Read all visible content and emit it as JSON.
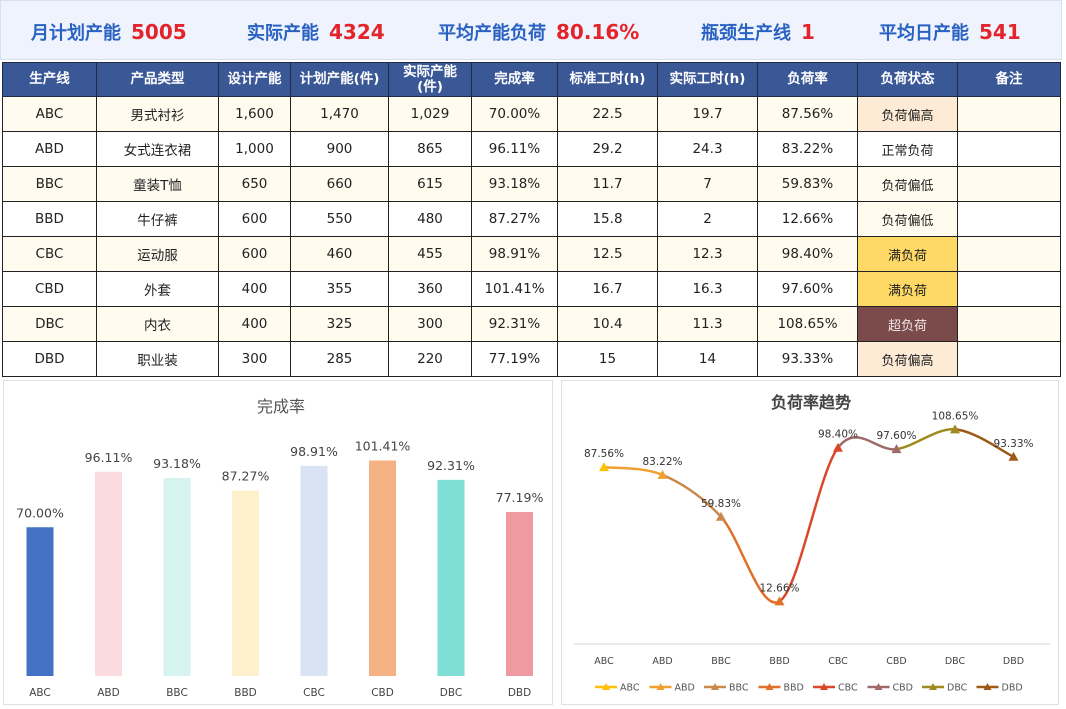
{
  "kpis": [
    {
      "label": "月计划产能",
      "value": "5005"
    },
    {
      "label": "实际产能",
      "value": "4324"
    },
    {
      "label": "平均产能负荷",
      "value": "80.16%"
    },
    {
      "label": "瓶颈生产线",
      "value": "1"
    },
    {
      "label": "平均日产能",
      "value": "541"
    }
  ],
  "table": {
    "headers": [
      "生产线",
      "产品类型",
      "设计产能",
      "计划产能(件)",
      "实际产能\n(件)",
      "完成率",
      "标准工时(h)",
      "实际工时(h)",
      "负荷率",
      "负荷状态",
      "备注"
    ],
    "rows": [
      [
        "ABC",
        "男式衬衫",
        "1,600",
        "1,470",
        "1,029",
        "70.00%",
        "22.5",
        "19.7",
        "87.56%",
        "负荷偏高",
        ""
      ],
      [
        "ABD",
        "女式连衣裙",
        "1,000",
        "900",
        "865",
        "96.11%",
        "29.2",
        "24.3",
        "83.22%",
        "正常负荷",
        ""
      ],
      [
        "BBC",
        "童装T恤",
        "650",
        "660",
        "615",
        "93.18%",
        "11.7",
        "7",
        "59.83%",
        "负荷偏低",
        ""
      ],
      [
        "BBD",
        "牛仔裤",
        "600",
        "550",
        "480",
        "87.27%",
        "15.8",
        "2",
        "12.66%",
        "负荷偏低",
        ""
      ],
      [
        "CBC",
        "运动服",
        "600",
        "460",
        "455",
        "98.91%",
        "12.5",
        "12.3",
        "98.40%",
        "满负荷",
        ""
      ],
      [
        "CBD",
        "外套",
        "400",
        "355",
        "360",
        "101.41%",
        "16.7",
        "16.3",
        "97.60%",
        "满负荷",
        ""
      ],
      [
        "DBC",
        "内衣",
        "400",
        "325",
        "300",
        "92.31%",
        "10.4",
        "11.3",
        "108.65%",
        "超负荷",
        ""
      ],
      [
        "DBD",
        "职业装",
        "300",
        "285",
        "220",
        "77.19%",
        "15",
        "14",
        "93.33%",
        "负荷偏高",
        ""
      ]
    ],
    "status_colors": {
      "负荷偏高": "#fdebd6",
      "正常负荷": "#ffffff",
      "负荷偏低": "#fffbee",
      "满负荷": "#ffd966",
      "超负荷": "#7b4b4b"
    }
  },
  "chart_data": [
    {
      "type": "bar",
      "title": "完成率",
      "categories": [
        "ABC",
        "ABD",
        "BBC",
        "BBD",
        "CBC",
        "CBD",
        "DBC",
        "DBD"
      ],
      "values": [
        70.0,
        96.11,
        93.18,
        87.27,
        98.91,
        101.41,
        92.31,
        77.19
      ],
      "value_labels": [
        "70.00%",
        "96.11%",
        "93.18%",
        "87.27%",
        "98.91%",
        "101.41%",
        "92.31%",
        "77.19%"
      ],
      "colors": [
        "#4472c4",
        "#fadbe0",
        "#d5f3ef",
        "#fff0cc",
        "#dae3f3",
        "#f4b183",
        "#7fded5",
        "#ee9aa0"
      ],
      "ylim": [
        0,
        120
      ],
      "grid": false,
      "legend": "none"
    },
    {
      "type": "line",
      "title": "负荷率趋势",
      "categories": [
        "ABC",
        "ABD",
        "BBC",
        "BBD",
        "CBC",
        "CBD",
        "DBC",
        "DBD"
      ],
      "values": [
        87.56,
        83.22,
        59.83,
        12.66,
        98.4,
        97.6,
        108.65,
        93.33
      ],
      "value_labels": [
        "87.56%",
        "83.22%",
        "59.83%",
        "12.66%",
        "98.40%",
        "97.60%",
        "108.65%",
        "93.33%"
      ],
      "segment_colors": [
        "#ffc000",
        "#f0a030",
        "#c8894a",
        "#e0702a",
        "#d9482b",
        "#a06a6a",
        "#9e8a1f",
        "#9c5a16"
      ],
      "series": [
        {
          "name": "ABC",
          "color": "#ffc000"
        },
        {
          "name": "ABD",
          "color": "#f0a030"
        },
        {
          "name": "BBC",
          "color": "#c8894a"
        },
        {
          "name": "BBD",
          "color": "#e0702a"
        },
        {
          "name": "CBC",
          "color": "#d9482b"
        },
        {
          "name": "CBD",
          "color": "#a06a6a"
        },
        {
          "name": "DBC",
          "color": "#9e8a1f"
        },
        {
          "name": "DBD",
          "color": "#9c5a16"
        }
      ],
      "ylim": [
        0,
        120
      ],
      "grid": false,
      "legend": "bottom"
    }
  ]
}
